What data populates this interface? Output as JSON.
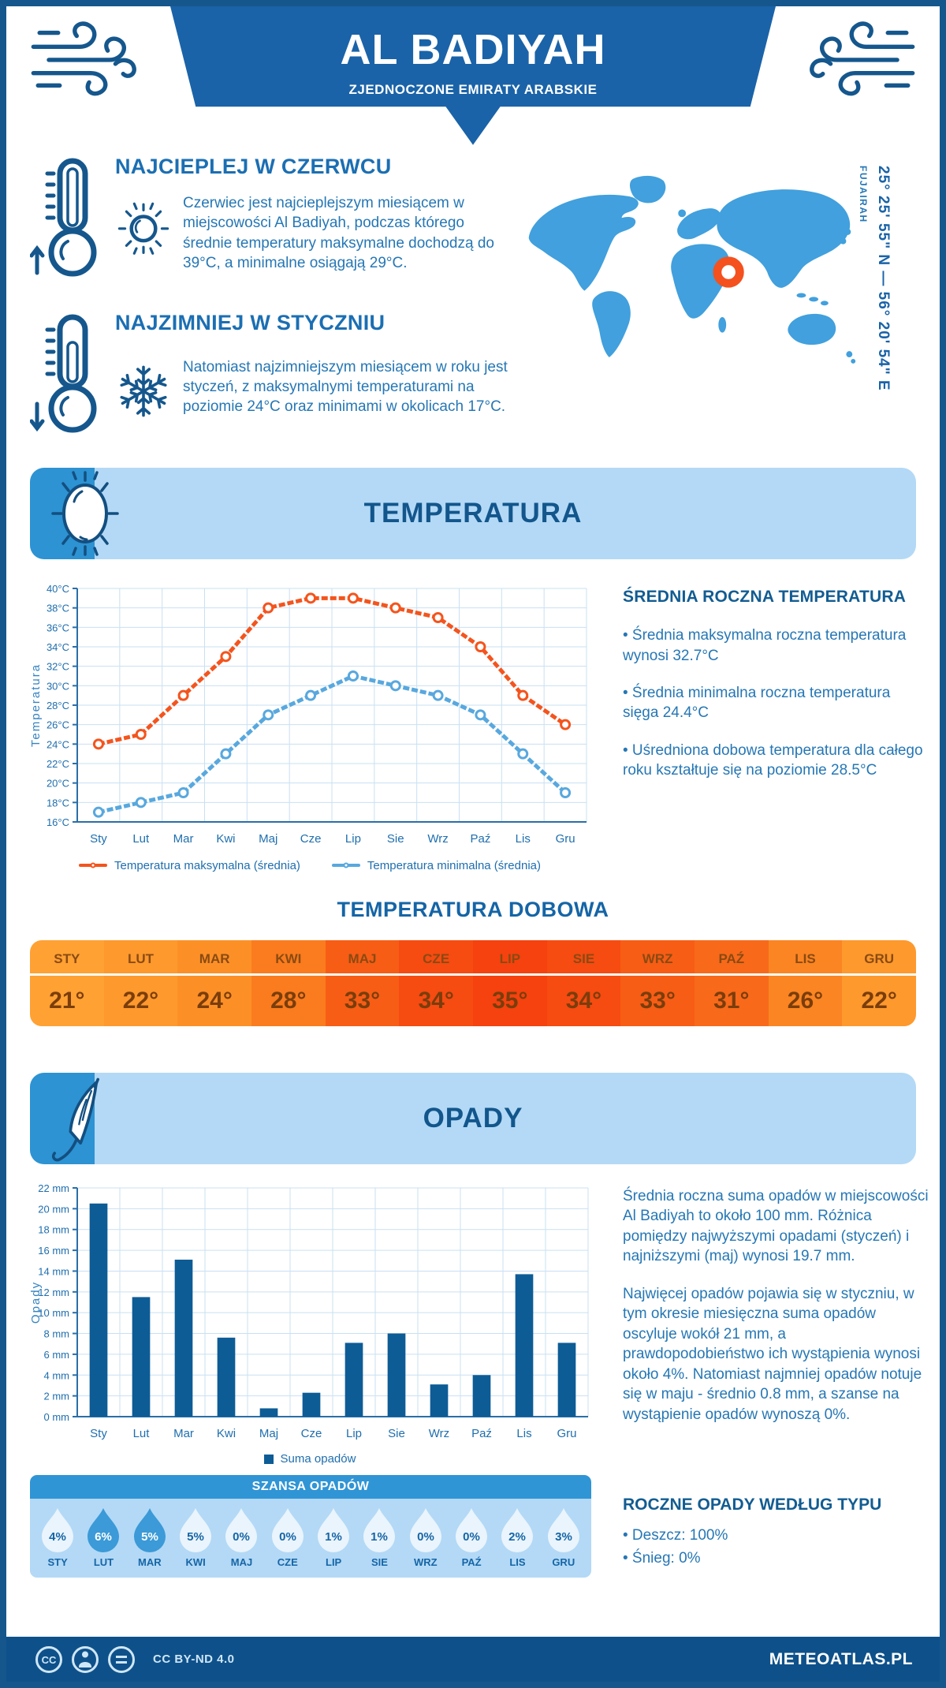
{
  "header": {
    "title": "AL BADIYAH",
    "subtitle": "ZJEDNOCZONE EMIRATY ARABSKIE"
  },
  "intro": {
    "warmest": {
      "heading": "NAJCIEPLEJ W CZERWCU",
      "text": "Czerwiec jest najcieplejszym miesiącem w miejscowości Al Badiyah, podczas którego średnie temperatury maksymalne dochodzą do 39°C, a minimalne osiągają 29°C."
    },
    "coldest": {
      "heading": "NAJZIMNIEJ W STYCZNIU",
      "text": "Natomiast najzimniejszym miesiącem w roku jest styczeń, z maksymalnymi temperaturami na poziomie 24°C oraz minimami w okolicach 17°C."
    }
  },
  "map": {
    "region": "FUJAIRAH",
    "coordinates": "25° 25' 55\" N — 56° 20' 54\" E",
    "land_color": "#41a0dd",
    "marker_color": "#f4511e"
  },
  "sections": {
    "temperature": "TEMPERATURA",
    "daily_temperature": "TEMPERATURA DOBOWA",
    "precipitation": "OPADY",
    "precip_chance": "SZANSA OPADÓW",
    "annual_by_type": "ROCZNE OPADY WEDŁUG TYPU"
  },
  "temperature": {
    "side_heading": "ŚREDNIA ROCZNA TEMPERATURA",
    "bullets": [
      "• Średnia maksymalna roczna temperatura wynosi 32.7°C",
      "• Średnia minimalna roczna temperatura sięga 24.4°C",
      "• Uśredniona dobowa temperatura dla całego roku kształtuje się na poziomie 28.5°C"
    ],
    "table": {
      "months": [
        "STY",
        "LUT",
        "MAR",
        "KWI",
        "MAJ",
        "CZE",
        "LIP",
        "SIE",
        "WRZ",
        "PAŹ",
        "LIS",
        "GRU"
      ],
      "values": [
        "21°",
        "22°",
        "24°",
        "28°",
        "33°",
        "34°",
        "35°",
        "34°",
        "33°",
        "31°",
        "26°",
        "22°"
      ],
      "cell_colors": [
        "#ffa133",
        "#fe992d",
        "#fc9027",
        "#fa7c1e",
        "#f75d15",
        "#f64b11",
        "#f5420e",
        "#f64b11",
        "#f75d15",
        "#f8691a",
        "#fb8522",
        "#fe992d"
      ]
    }
  },
  "precipitation": {
    "paragraphs": [
      "Średnia roczna suma opadów w miejscowości Al Badiyah to około 100 mm. Różnica pomiędzy najwyższymi opadami (styczeń) i najniższymi (maj) wynosi 19.7 mm.",
      "Najwięcej opadów pojawia się w styczniu, w tym okresie miesięczna suma opadów oscyluje wokół 21 mm, a prawdopodobieństwo ich wystąpienia wynosi około 4%. Natomiast najmniej opadów notuje się w maju - średnio 0.8 mm, a szanse na wystąpienie opadów wynoszą 0%."
    ],
    "type_bullets": [
      "• Deszcz: 100%",
      "• Śnieg: 0%"
    ],
    "chance": {
      "months": [
        "STY",
        "LUT",
        "MAR",
        "KWI",
        "MAJ",
        "CZE",
        "LIP",
        "SIE",
        "WRZ",
        "PAŹ",
        "LIS",
        "GRU"
      ],
      "values": [
        "4%",
        "6%",
        "5%",
        "5%",
        "0%",
        "0%",
        "1%",
        "1%",
        "0%",
        "0%",
        "2%",
        "3%"
      ],
      "highlighted": [
        false,
        true,
        true,
        false,
        false,
        false,
        false,
        false,
        false,
        false,
        false,
        false
      ],
      "drop_color": "#eaf4fc",
      "highlight_color": "#3b9ad7",
      "text_color": "#1565a6"
    }
  },
  "footer": {
    "license": "CC BY-ND 4.0",
    "brand": "METEOATLAS.PL"
  },
  "chart_data": [
    {
      "type": "line",
      "categories": [
        "Sty",
        "Lut",
        "Mar",
        "Kwi",
        "Maj",
        "Cze",
        "Lip",
        "Sie",
        "Wrz",
        "Paź",
        "Lis",
        "Gru"
      ],
      "series": [
        {
          "name": "Temperatura maksymalna (średnia)",
          "color": "#f4541d",
          "values": [
            24,
            25,
            29,
            33,
            38,
            39,
            39,
            38,
            37,
            34,
            29,
            26
          ]
        },
        {
          "name": "Temperatura minimalna (średnia)",
          "color": "#58a8de",
          "values": [
            17,
            18,
            19,
            23,
            27,
            29,
            31,
            30,
            29,
            27,
            23,
            19
          ]
        }
      ],
      "ylabel": "Temperatura",
      "ylim": [
        16,
        40
      ],
      "ytick_step": 2,
      "ytick_suffix": "°C",
      "grid": true,
      "legend_position": "bottom"
    },
    {
      "type": "bar",
      "categories": [
        "Sty",
        "Lut",
        "Mar",
        "Kwi",
        "Maj",
        "Cze",
        "Lip",
        "Sie",
        "Wrz",
        "Paź",
        "Lis",
        "Gru"
      ],
      "series": [
        {
          "name": "Suma opadów",
          "color": "#0d5c96",
          "values": [
            20.5,
            11.5,
            15.1,
            7.6,
            0.8,
            2.3,
            7.1,
            8,
            3.1,
            4,
            13.7,
            7.1
          ]
        }
      ],
      "ylabel": "Opady",
      "ylim": [
        0,
        22
      ],
      "ytick_step": 2,
      "ytick_suffix": " mm",
      "grid": true,
      "legend_position": "bottom"
    }
  ]
}
